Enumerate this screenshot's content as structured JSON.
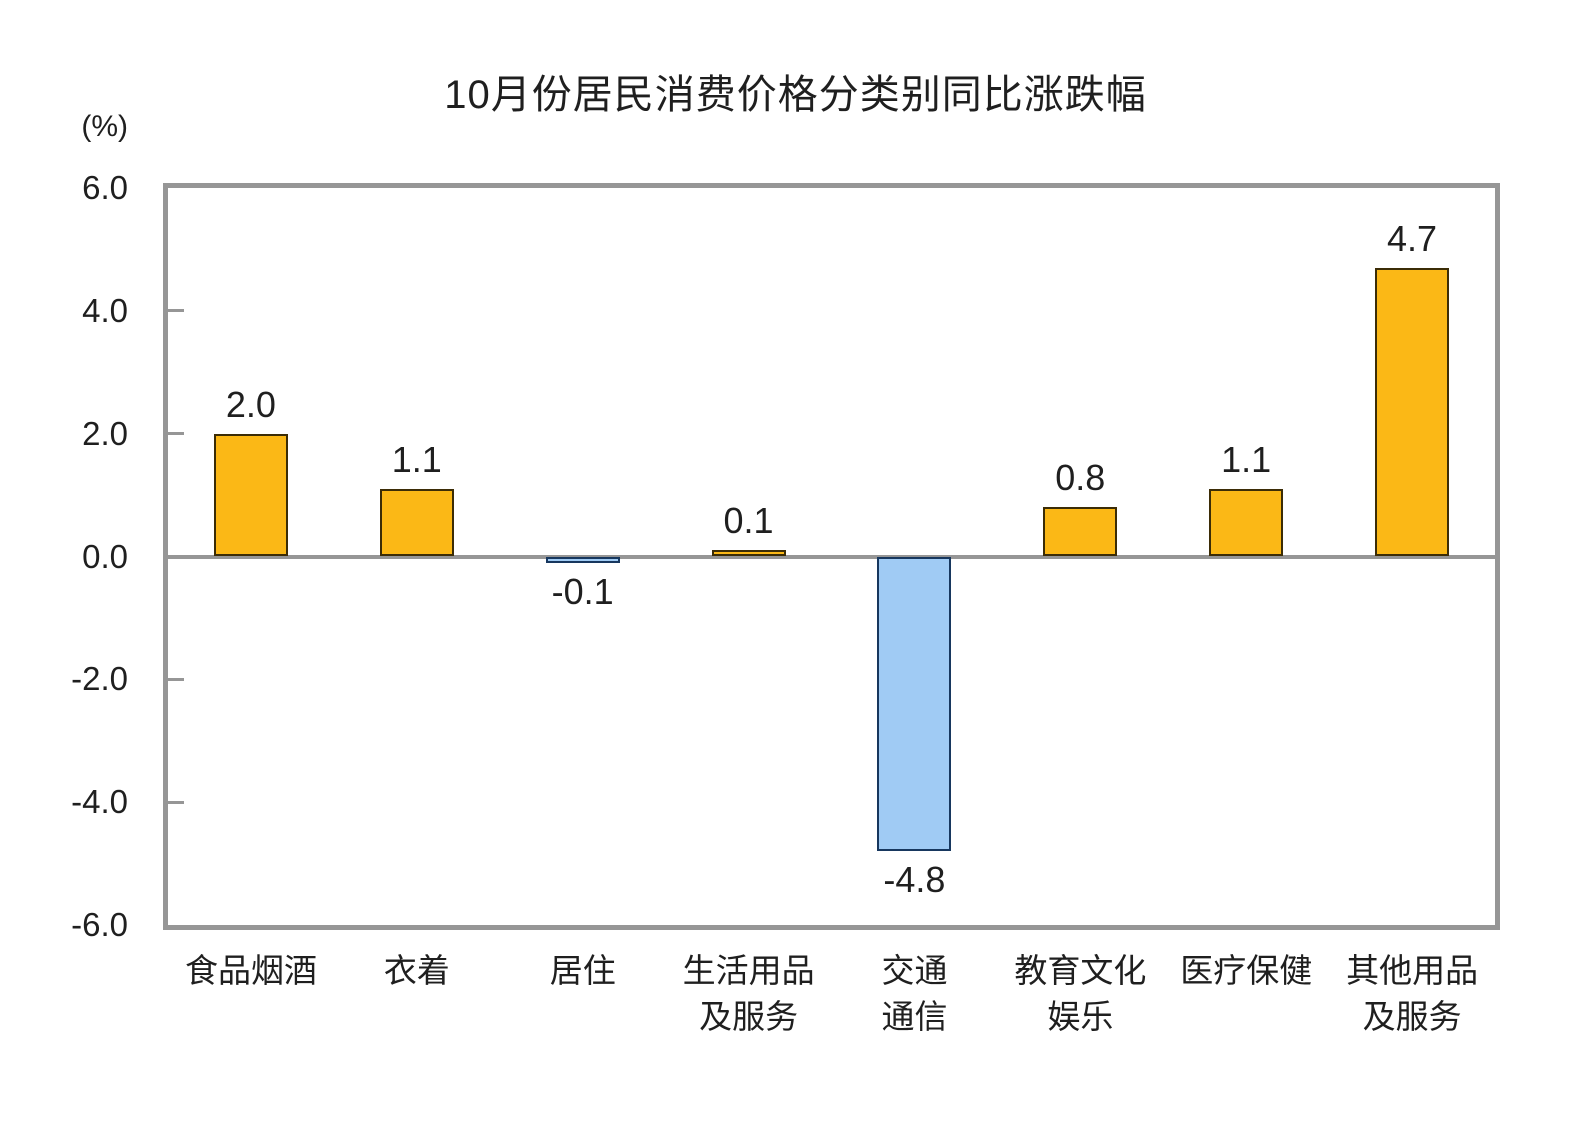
{
  "chart": {
    "title": "10月份居民消费价格分类别同比涨跌幅",
    "unit_label": "(%)"
  },
  "chart_data": {
    "type": "bar",
    "title": "10月份居民消费价格分类别同比涨跌幅",
    "unit": "%",
    "categories": [
      "食品烟酒",
      "衣着",
      "居住",
      "生活用品及服务",
      "交通通信",
      "教育文化娱乐",
      "医疗保健",
      "其他用品及服务"
    ],
    "category_display": [
      "食品烟酒",
      "衣着",
      "居住",
      "生活用品\n及服务",
      "交通\n通信",
      "教育文化\n娱乐",
      "医疗保健",
      "其他用品\n及服务"
    ],
    "values": [
      2.0,
      1.1,
      -0.1,
      0.1,
      -4.8,
      0.8,
      1.1,
      4.7
    ],
    "data_labels": [
      "2.0",
      "1.1",
      "-0.1",
      "0.1",
      "-4.8",
      "0.8",
      "1.1",
      "4.7"
    ],
    "xlabel": "",
    "ylabel": "(%)",
    "ylim": [
      -6.0,
      6.0
    ],
    "ytick_values": [
      6,
      4,
      2,
      0,
      -2,
      -4,
      -6
    ],
    "ytick_labels": [
      "6.0",
      "4.0",
      "2.0",
      "0.0",
      "-2.0",
      "-4.0",
      "-6.0"
    ],
    "grid": false,
    "legend": "none",
    "colors": {
      "positive_fill": "#FBB816",
      "positive_border": "#3B2C06",
      "negative_fill": "#A0CBF4",
      "negative_border": "#17375E",
      "axis_frame": "#969696",
      "text": "#1f1f1f"
    }
  }
}
